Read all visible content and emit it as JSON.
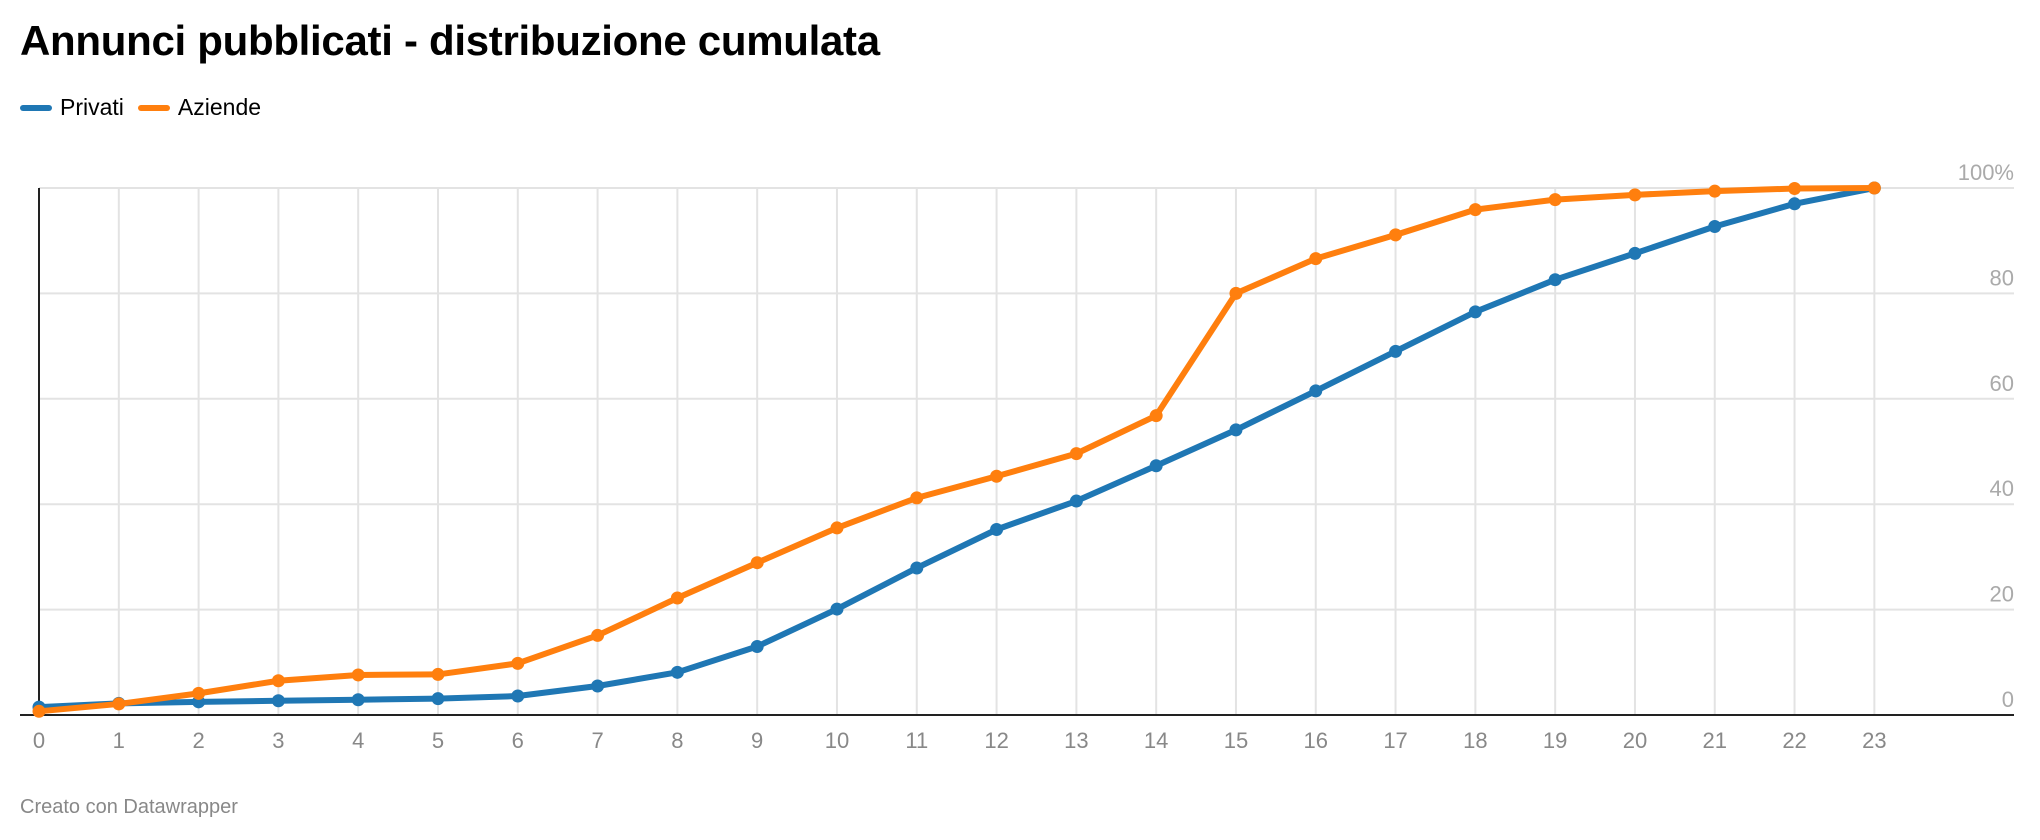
{
  "footer": {
    "credit": "Creato con Datawrapper"
  },
  "chart_data": {
    "type": "line",
    "title": "Annunci pubblicati - distribuzione cumulata",
    "xlabel": "",
    "ylabel": "",
    "x": [
      0,
      1,
      2,
      3,
      4,
      5,
      6,
      7,
      8,
      9,
      10,
      11,
      12,
      13,
      14,
      15,
      16,
      17,
      18,
      19,
      20,
      21,
      22,
      23
    ],
    "x_tick_labels": [
      "0",
      "1",
      "2",
      "3",
      "4",
      "5",
      "6",
      "7",
      "8",
      "9",
      "10",
      "11",
      "12",
      "13",
      "14",
      "15",
      "16",
      "17",
      "18",
      "19",
      "20",
      "21",
      "22",
      "23"
    ],
    "xlim": [
      0,
      24.75
    ],
    "ylim": [
      0,
      100
    ],
    "y_ticks": [
      0,
      20,
      40,
      60,
      80,
      100
    ],
    "y_tick_labels": [
      "0",
      "20",
      "40",
      "60",
      "80",
      "100%"
    ],
    "grid": true,
    "legend_position": "top-left",
    "series": [
      {
        "name": "Privati",
        "color": "#1f77b4",
        "values": [
          1.5,
          2.2,
          2.5,
          2.7,
          2.9,
          3.1,
          3.6,
          5.5,
          8.1,
          13.0,
          20.1,
          27.9,
          35.2,
          40.6,
          47.3,
          54.1,
          61.5,
          69.0,
          76.5,
          82.6,
          87.6,
          92.7,
          97.0,
          100.0
        ]
      },
      {
        "name": "Aziende",
        "color": "#ff7f0e",
        "values": [
          0.7,
          2.1,
          4.1,
          6.5,
          7.6,
          7.7,
          9.8,
          15.1,
          22.2,
          28.9,
          35.5,
          41.2,
          45.3,
          49.6,
          56.8,
          80.0,
          86.6,
          91.1,
          95.9,
          97.8,
          98.7,
          99.4,
          99.9,
          100.0
        ]
      }
    ]
  }
}
